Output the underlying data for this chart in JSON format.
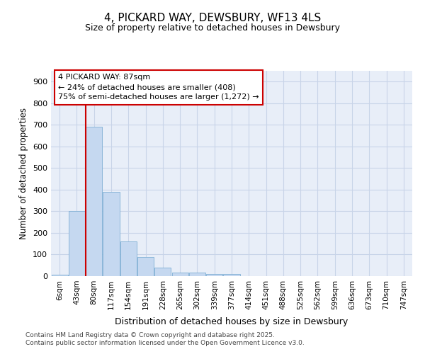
{
  "title": "4, PICKARD WAY, DEWSBURY, WF13 4LS",
  "subtitle": "Size of property relative to detached houses in Dewsbury",
  "xlabel": "Distribution of detached houses by size in Dewsbury",
  "ylabel": "Number of detached properties",
  "categories": [
    "6sqm",
    "43sqm",
    "80sqm",
    "117sqm",
    "154sqm",
    "191sqm",
    "228sqm",
    "265sqm",
    "302sqm",
    "339sqm",
    "377sqm",
    "414sqm",
    "451sqm",
    "488sqm",
    "525sqm",
    "562sqm",
    "599sqm",
    "636sqm",
    "673sqm",
    "710sqm",
    "747sqm"
  ],
  "values": [
    8,
    300,
    690,
    390,
    160,
    90,
    38,
    15,
    15,
    10,
    10,
    0,
    0,
    0,
    0,
    0,
    0,
    0,
    0,
    0,
    0
  ],
  "bar_color": "#c5d8f0",
  "bar_edge_color": "#7fafd4",
  "grid_color": "#c8d4e8",
  "background_color": "#ffffff",
  "plot_bg_color": "#e8eef8",
  "annotation_box_color": "#ffffff",
  "annotation_border_color": "#cc0000",
  "vline_color": "#cc0000",
  "vline_x_index": 2,
  "annotation_lines": [
    "4 PICKARD WAY: 87sqm",
    "← 24% of detached houses are smaller (408)",
    "75% of semi-detached houses are larger (1,272) →"
  ],
  "ylim": [
    0,
    950
  ],
  "yticks": [
    0,
    100,
    200,
    300,
    400,
    500,
    600,
    700,
    800,
    900
  ],
  "footnote_line1": "Contains HM Land Registry data © Crown copyright and database right 2025.",
  "footnote_line2": "Contains public sector information licensed under the Open Government Licence v3.0."
}
